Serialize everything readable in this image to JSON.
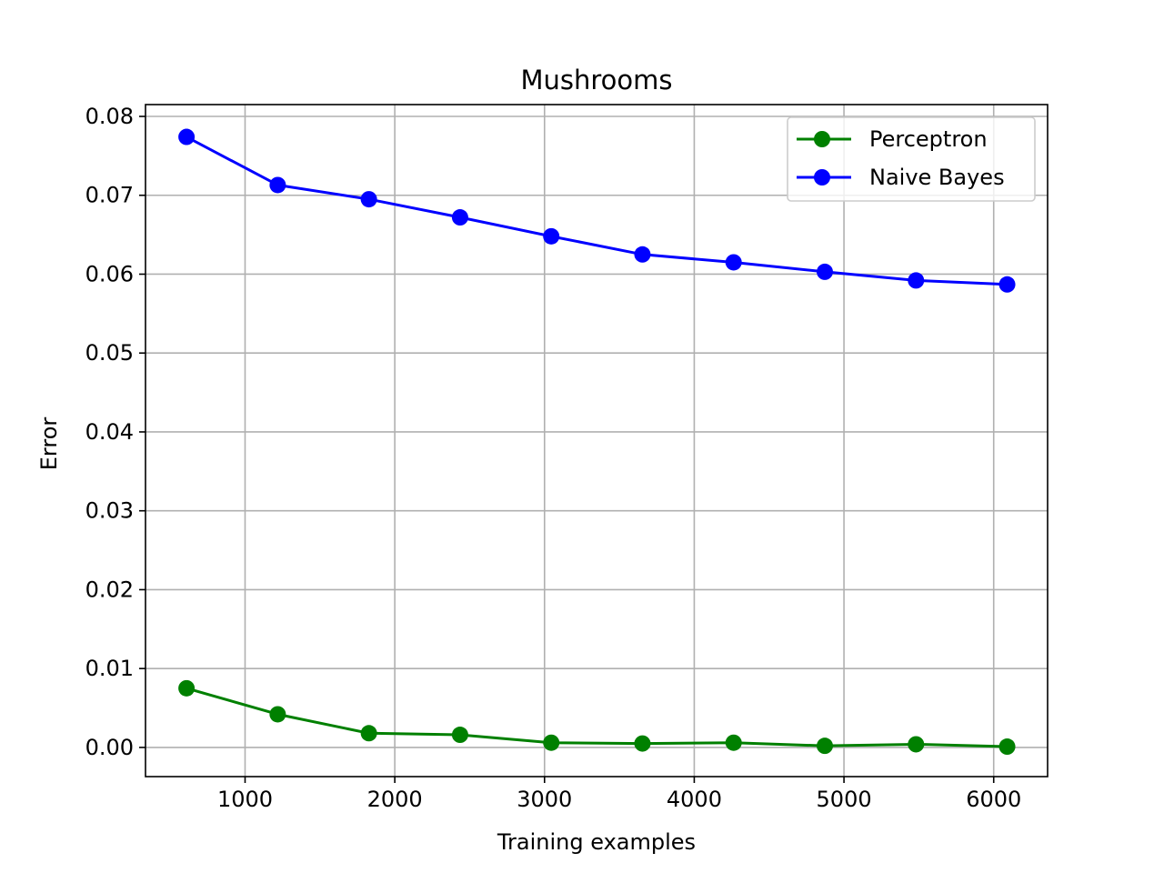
{
  "chart_data": {
    "type": "line",
    "title": "Mushrooms",
    "xlabel": "Training examples",
    "ylabel": "Error",
    "xlim": [
      335,
      6360
    ],
    "ylim": [
      -0.0037,
      0.0815
    ],
    "xticks": [
      1000,
      2000,
      3000,
      4000,
      5000,
      6000
    ],
    "xtick_labels": [
      "1000",
      "2000",
      "3000",
      "4000",
      "5000",
      "6000"
    ],
    "yticks": [
      0.0,
      0.01,
      0.02,
      0.03,
      0.04,
      0.05,
      0.06,
      0.07,
      0.08
    ],
    "ytick_labels": [
      "0.00",
      "0.01",
      "0.02",
      "0.03",
      "0.04",
      "0.05",
      "0.06",
      "0.07",
      "0.08"
    ],
    "grid": true,
    "legend_position": "top-right",
    "x": [
      609,
      1218,
      1827,
      2436,
      3045,
      3654,
      4263,
      4872,
      5481,
      6090
    ],
    "series": [
      {
        "name": "Perceptron",
        "color": "#008000",
        "marker": "circle",
        "values": [
          0.0075,
          0.0042,
          0.0018,
          0.0016,
          0.0006,
          0.0005,
          0.0006,
          0.0002,
          0.0004,
          0.0001
        ]
      },
      {
        "name": "Naive Bayes",
        "color": "#0000ff",
        "marker": "circle",
        "values": [
          0.0774,
          0.0713,
          0.0695,
          0.0672,
          0.0648,
          0.0625,
          0.0615,
          0.0603,
          0.0592,
          0.0587
        ]
      }
    ]
  }
}
